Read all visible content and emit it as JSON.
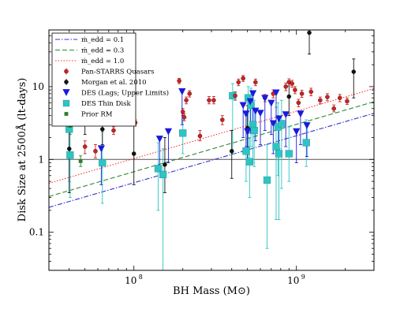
{
  "chart_data": {
    "type": "scatter",
    "title": "",
    "xlabel": "BH Mass (M⊙)",
    "ylabel": "Disk Size at 2500Å (lt-days)",
    "xscale": "log",
    "yscale": "log",
    "xlim": [
      30000000,
      3000000000
    ],
    "ylim": [
      0.03,
      60
    ],
    "x_tick_labels": [
      {
        "value": 100000000,
        "base": "10",
        "exp": "8"
      },
      {
        "value": 1000000000,
        "base": "10",
        "exp": "9"
      }
    ],
    "y_tick_labels": [
      {
        "value": 0.1,
        "label": "0.1"
      },
      {
        "value": 1,
        "label": "1"
      },
      {
        "value": 10,
        "label": "10"
      }
    ],
    "reference_line_y": 1,
    "legend_position": "top-left",
    "model_lines": [
      {
        "name": "ṁ_edd = 0.1",
        "color": "#3333cc",
        "dash": "6 2 1.5 2",
        "y_at_xmin": 0.22,
        "y_at_xmax": 4.3
      },
      {
        "name": "ṁ_edd = 0.3",
        "color": "#2e8b2e",
        "dash": "6 3",
        "y_at_xmin": 0.31,
        "y_at_xmax": 6.2
      },
      {
        "name": "ṁ_edd = 1.0",
        "color": "#ff3333",
        "dash": "1.5 2",
        "y_at_xmin": 0.47,
        "y_at_xmax": 9.4
      }
    ],
    "series": [
      {
        "name": "Pan-STARRS Quasars",
        "color": "#cc2222",
        "marker": "circle",
        "points": [
          {
            "x": 50000000,
            "y": 1.5,
            "lo": 1.2,
            "hi": 1.8
          },
          {
            "x": 58000000,
            "y": 1.3,
            "lo": 1.05,
            "hi": 1.6
          },
          {
            "x": 75000000,
            "y": 2.5,
            "lo": 2.2,
            "hi": 2.8
          },
          {
            "x": 102000000,
            "y": 3.2,
            "lo": 2.9,
            "hi": 3.5
          },
          {
            "x": 190000000,
            "y": 12,
            "lo": 11,
            "hi": 13
          },
          {
            "x": 200000000,
            "y": 4.5,
            "lo": 4,
            "hi": 5
          },
          {
            "x": 204000000,
            "y": 3.8,
            "lo": 3.4,
            "hi": 4.2
          },
          {
            "x": 210000000,
            "y": 6.5,
            "lo": 5.8,
            "hi": 7.2
          },
          {
            "x": 220000000,
            "y": 8,
            "lo": 7.2,
            "hi": 8.8
          },
          {
            "x": 255000000,
            "y": 2.1,
            "lo": 1.8,
            "hi": 2.5
          },
          {
            "x": 290000000,
            "y": 6.5,
            "lo": 5.8,
            "hi": 7.3
          },
          {
            "x": 310000000,
            "y": 6.5,
            "lo": 5.8,
            "hi": 7.3
          },
          {
            "x": 350000000,
            "y": 3.5,
            "lo": 3,
            "hi": 4
          },
          {
            "x": 420000000,
            "y": 7.5,
            "lo": 6.5,
            "hi": 8.5
          },
          {
            "x": 440000000,
            "y": 11.5,
            "lo": 10.3,
            "hi": 12.7
          },
          {
            "x": 470000000,
            "y": 13,
            "lo": 11.8,
            "hi": 14.2
          },
          {
            "x": 560000000,
            "y": 11.5,
            "lo": 10.3,
            "hi": 12.7
          },
          {
            "x": 640000000,
            "y": 7,
            "lo": 6.2,
            "hi": 7.8
          },
          {
            "x": 720000000,
            "y": 8,
            "lo": 7,
            "hi": 9
          },
          {
            "x": 860000000,
            "y": 10,
            "lo": 8.8,
            "hi": 11.2
          },
          {
            "x": 900000000,
            "y": 11.5,
            "lo": 10.2,
            "hi": 12.8
          },
          {
            "x": 940000000,
            "y": 11,
            "lo": 9.8,
            "hi": 12.2
          },
          {
            "x": 980000000,
            "y": 9,
            "lo": 8,
            "hi": 10
          },
          {
            "x": 1030000000,
            "y": 6,
            "lo": 5.3,
            "hi": 6.7
          },
          {
            "x": 1080000000,
            "y": 8,
            "lo": 7.1,
            "hi": 8.9
          },
          {
            "x": 1230000000,
            "y": 8.5,
            "lo": 7.5,
            "hi": 9.5
          },
          {
            "x": 1400000000,
            "y": 6.5,
            "lo": 5.8,
            "hi": 7.2
          },
          {
            "x": 1550000000,
            "y": 7.2,
            "lo": 6.4,
            "hi": 8
          },
          {
            "x": 1700000000,
            "y": 5,
            "lo": 4.5,
            "hi": 5.6
          },
          {
            "x": 1850000000,
            "y": 7,
            "lo": 6.2,
            "hi": 7.8
          },
          {
            "x": 2050000000,
            "y": 6.3,
            "lo": 5.7,
            "hi": 7
          }
        ]
      },
      {
        "name": "Morgan et al. 2010",
        "color": "#111111",
        "marker": "circle",
        "points": [
          {
            "x": 40000000,
            "y": 1.4,
            "lo": 0.35,
            "hi": 5.5
          },
          {
            "x": 50000000,
            "y": 3.2,
            "lo": 2.2,
            "hi": 4.5
          },
          {
            "x": 64000000,
            "y": 2.6,
            "lo": 1.6,
            "hi": 3.8
          },
          {
            "x": 100000000,
            "y": 1.2,
            "lo": 0.45,
            "hi": 3.2
          },
          {
            "x": 155000000,
            "y": 0.85,
            "lo": 0.35,
            "hi": 2
          },
          {
            "x": 400000000,
            "y": 1.3,
            "lo": 0.55,
            "hi": 2.5
          },
          {
            "x": 500000000,
            "y": 2.7,
            "lo": 1.5,
            "hi": 5.5
          },
          {
            "x": 900000000,
            "y": 7.3,
            "lo": 4,
            "hi": 12
          },
          {
            "x": 1200000000,
            "y": 55,
            "lo": 28,
            "hi": 120
          },
          {
            "x": 2250000000,
            "y": 16,
            "lo": 7,
            "hi": 24
          }
        ]
      },
      {
        "name": "DES (Lags; Upper Limits)",
        "color": "#1a1adb",
        "marker": "triangle-down",
        "points": [
          {
            "x": 63000000,
            "y": 1.4,
            "lo": 0.45,
            "hi": 1.4
          },
          {
            "x": 144000000,
            "y": 1.9,
            "lo": 0.8,
            "hi": 1.9
          },
          {
            "x": 163000000,
            "y": 2.4,
            "lo": 0.9,
            "hi": 2.4
          },
          {
            "x": 198000000,
            "y": 8.5,
            "lo": 3,
            "hi": 8.5
          },
          {
            "x": 470000000,
            "y": 5.5,
            "lo": 2,
            "hi": 5.5
          },
          {
            "x": 490000000,
            "y": 4.2,
            "lo": 1.5,
            "hi": 4.2
          },
          {
            "x": 500000000,
            "y": 2.4,
            "lo": 0.9,
            "hi": 2.4
          },
          {
            "x": 520000000,
            "y": 6.2,
            "lo": 2.3,
            "hi": 6.2
          },
          {
            "x": 540000000,
            "y": 8,
            "lo": 3,
            "hi": 8
          },
          {
            "x": 560000000,
            "y": 4.6,
            "lo": 1.8,
            "hi": 4.6
          },
          {
            "x": 600000000,
            "y": 4.3,
            "lo": 1.6,
            "hi": 4.3
          },
          {
            "x": 640000000,
            "y": 6.9,
            "lo": 2.5,
            "hi": 6.9
          },
          {
            "x": 700000000,
            "y": 5.9,
            "lo": 2.2,
            "hi": 5.9
          },
          {
            "x": 720000000,
            "y": 3.1,
            "lo": 1.2,
            "hi": 3.1
          },
          {
            "x": 750000000,
            "y": 8.2,
            "lo": 3,
            "hi": 8.2
          },
          {
            "x": 780000000,
            "y": 3.6,
            "lo": 1.4,
            "hi": 3.6
          },
          {
            "x": 860000000,
            "y": 4.1,
            "lo": 1.5,
            "hi": 4.1
          },
          {
            "x": 1000000000,
            "y": 2.4,
            "lo": 0.9,
            "hi": 2.4
          },
          {
            "x": 1060000000,
            "y": 4.2,
            "lo": 1.6,
            "hi": 4.2
          },
          {
            "x": 1160000000,
            "y": 2.9,
            "lo": 1.1,
            "hi": 2.9
          }
        ]
      },
      {
        "name": "DES Thin Disk",
        "color": "#2ec4c4",
        "marker": "square",
        "points": [
          {
            "x": 40000000,
            "y": 2.6,
            "lo": 0.5,
            "hi": 5.5
          },
          {
            "x": 40500000,
            "y": 1.15,
            "lo": 0.3,
            "hi": 2.6
          },
          {
            "x": 64000000,
            "y": 0.9,
            "lo": 0.25,
            "hi": 2.4
          },
          {
            "x": 141000000,
            "y": 0.75,
            "lo": 0.2,
            "hi": 1.7
          },
          {
            "x": 151000000,
            "y": 0.62,
            "lo": 0.03,
            "hi": 1.4
          },
          {
            "x": 200000000,
            "y": 2.3,
            "lo": 1.2,
            "hi": 3.5
          },
          {
            "x": 405000000,
            "y": 7.5,
            "lo": 1.2,
            "hi": 11
          },
          {
            "x": 490000000,
            "y": 1.3,
            "lo": 0.5,
            "hi": 4
          },
          {
            "x": 505000000,
            "y": 7,
            "lo": 1,
            "hi": 10
          },
          {
            "x": 515000000,
            "y": 0.93,
            "lo": 0.3,
            "hi": 2
          },
          {
            "x": 525000000,
            "y": 5.5,
            "lo": 1.5,
            "hi": 9.5
          },
          {
            "x": 540000000,
            "y": 3,
            "lo": 0.9,
            "hi": 7.5
          },
          {
            "x": 550000000,
            "y": 2.5,
            "lo": 0.8,
            "hi": 6.5
          },
          {
            "x": 660000000,
            "y": 0.52,
            "lo": 0.06,
            "hi": 1.6
          },
          {
            "x": 750000000,
            "y": 1.5,
            "lo": 0.15,
            "hi": 5.2
          },
          {
            "x": 770000000,
            "y": 2.8,
            "lo": 0.6,
            "hi": 6
          },
          {
            "x": 780000000,
            "y": 1.2,
            "lo": 0.15,
            "hi": 4
          },
          {
            "x": 810000000,
            "y": 3.1,
            "lo": 0.4,
            "hi": 6.5
          },
          {
            "x": 900000000,
            "y": 1.2,
            "lo": 0.5,
            "hi": 2.8
          },
          {
            "x": 1150000000,
            "y": 1.7,
            "lo": 0.8,
            "hi": 3.5
          }
        ]
      },
      {
        "name": "Prior RM",
        "color": "#2e7d2e",
        "marker": "square-small",
        "points": [
          {
            "x": 40500000,
            "y": 2.9,
            "lo": 2.2,
            "hi": 4
          },
          {
            "x": 47000000,
            "y": 0.95,
            "lo": 0.8,
            "hi": 1.12
          }
        ]
      }
    ]
  }
}
